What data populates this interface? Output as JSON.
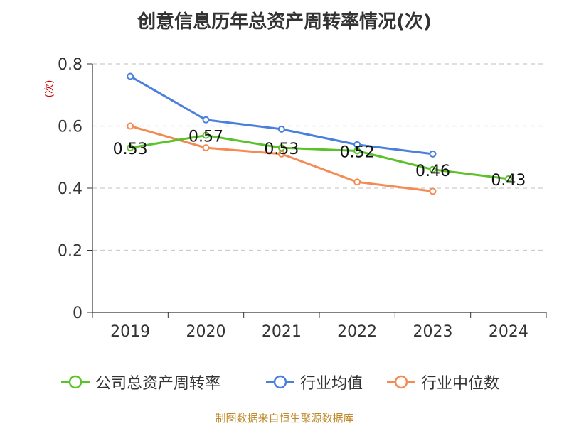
{
  "chart_data": {
    "type": "line",
    "title": "创意信息历年总资产周转率情况(次)",
    "ylabel": "(次)",
    "xlabel": "",
    "categories": [
      "2019",
      "2020",
      "2021",
      "2022",
      "2023",
      "2024"
    ],
    "ylim": [
      0,
      0.8
    ],
    "yticks": [
      0,
      0.2,
      0.4,
      0.6,
      0.8
    ],
    "ytick_labels": [
      "0",
      "0.2",
      "0.4",
      "0.6",
      "0.8"
    ],
    "grid": true,
    "legend_position": "bottom",
    "series": [
      {
        "name": "公司总资产周转率",
        "color": "#5bc22a",
        "values": [
          0.53,
          0.57,
          0.53,
          0.52,
          0.46,
          0.43
        ],
        "data_labels": [
          "0.53",
          "0.57",
          "0.53",
          "0.52",
          "0.46",
          "0.43"
        ]
      },
      {
        "name": "行业均值",
        "color": "#4a7fdd",
        "values": [
          0.76,
          0.62,
          0.59,
          0.54,
          0.51,
          null
        ]
      },
      {
        "name": "行业中位数",
        "color": "#f58b54",
        "values": [
          0.6,
          0.53,
          0.51,
          0.42,
          0.39,
          null
        ]
      }
    ],
    "source": "制图数据来自恒生聚源数据库"
  }
}
